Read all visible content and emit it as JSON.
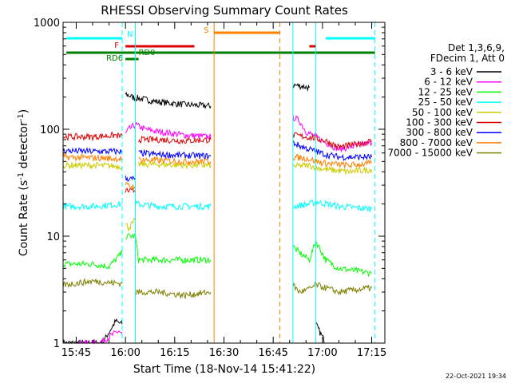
{
  "chart_data": {
    "type": "line",
    "title": "RHESSI Observing Summary Count Rates",
    "xlabel": "Start Time (18-Nov-14 15:41:22)",
    "ylabel": "Count Rate (s",
    "ylabel_sup1": "-1",
    "ylabel_mid": " detector",
    "ylabel_sup2": "-1",
    "ylabel_end": ")",
    "y_scale": "log",
    "ylim": [
      1,
      1000
    ],
    "xlim": [
      "15:41",
      "17:19"
    ],
    "x_ticks": [
      "15:45",
      "16:00",
      "16:15",
      "16:30",
      "16:45",
      "17:00",
      "17:15"
    ],
    "y_ticks": [
      "1",
      "10",
      "100",
      "1000"
    ],
    "date_stamp": "22-Oct-2021 19:34",
    "legend": {
      "position": "right",
      "header_line1": "Det 1,3,6,9,",
      "header_line2": "FDecim 1, Att 0",
      "entries": [
        {
          "label": "3 - 6 keV",
          "color": "#000000"
        },
        {
          "label": "6 - 12 keV",
          "color": "#ff00ff"
        },
        {
          "label": "12 - 25 keV",
          "color": "#00ff00"
        },
        {
          "label": "25 - 50 keV",
          "color": "#00ffff"
        },
        {
          "label": "50 - 100 keV",
          "color": "#cccc00"
        },
        {
          "label": "100 - 300 keV",
          "color": "#dd0000"
        },
        {
          "label": "300 - 800 keV",
          "color": "#0000ff"
        },
        {
          "label": "800 - 7000 keV",
          "color": "#ff8000"
        },
        {
          "label": "7000 - 15000 keV",
          "color": "#808000"
        }
      ]
    },
    "flag_bars": [
      {
        "label": "N",
        "color": "#00ffff",
        "segments": [
          [
            "15:42",
            "15:59"
          ],
          [
            "17:01",
            "17:16"
          ]
        ]
      },
      {
        "label": "S",
        "color": "#ff8000",
        "segments": [
          [
            "16:27",
            "16:47"
          ]
        ]
      },
      {
        "label": "F",
        "color": "#dd0000",
        "segments": [
          [
            "16:00",
            "16:21"
          ],
          [
            "16:56",
            "16:58"
          ]
        ]
      },
      {
        "label": "RD0",
        "color": "#008000",
        "segments": [
          [
            "15:42",
            "17:16"
          ]
        ]
      },
      {
        "label": "RD6",
        "color": "#008000",
        "segments": [
          [
            "16:00",
            "16:04"
          ]
        ]
      }
    ],
    "vertical_markers": [
      {
        "time": "15:59",
        "color": "#00ffff",
        "style": "dashed"
      },
      {
        "time": "16:03",
        "color": "#00ffff",
        "style": "solid"
      },
      {
        "time": "16:27",
        "color": "#ff8000",
        "style": "solid"
      },
      {
        "time": "16:47",
        "color": "#ff8000",
        "style": "dashed"
      },
      {
        "time": "16:51",
        "color": "#00ffff",
        "style": "solid"
      },
      {
        "time": "16:58",
        "color": "#00ffff",
        "style": "solid"
      },
      {
        "time": "17:16",
        "color": "#00ffff",
        "style": "dashed"
      }
    ],
    "series": [
      {
        "name": "3 - 6 keV",
        "color": "#000000",
        "segments": [
          {
            "x": [
              "15:41",
              "15:53",
              "15:57",
              "15:59"
            ],
            "y": [
              1,
              1,
              1.6,
              1.5
            ]
          },
          {
            "x": [
              "16:00",
              "16:02",
              "16:10",
              "16:18",
              "16:26"
            ],
            "y": [
              215,
              200,
              180,
              170,
              165
            ]
          },
          {
            "x": [
              "16:51",
              "16:53",
              "16:56"
            ],
            "y": [
              260,
              255,
              245
            ]
          },
          {
            "x": [
              "16:58",
              "16:59",
              "17:01"
            ],
            "y": [
              1.5,
              1.3,
              1
            ]
          }
        ]
      },
      {
        "name": "6 - 12 keV",
        "color": "#ff00ff",
        "segments": [
          {
            "x": [
              "15:45",
              "15:52",
              "15:58",
              "15:59"
            ],
            "y": [
              1,
              1,
              1.3,
              1.2
            ]
          },
          {
            "x": [
              "16:00",
              "16:01",
              "16:03",
              "16:06",
              "16:10",
              "16:18",
              "16:26"
            ],
            "y": [
              90,
              100,
              110,
              100,
              95,
              88,
              85
            ]
          },
          {
            "x": [
              "16:51",
              "16:53",
              "16:55",
              "16:58",
              "17:01",
              "17:05",
              "17:15"
            ],
            "y": [
              130,
              120,
              95,
              85,
              75,
              65,
              75
            ]
          }
        ]
      },
      {
        "name": "12 - 25 keV",
        "color": "#00ff00",
        "segments": [
          {
            "x": [
              "15:41",
              "15:50",
              "15:55",
              "15:59"
            ],
            "y": [
              5.5,
              5.5,
              5.2,
              7
            ]
          },
          {
            "x": [
              "16:00",
              "16:03",
              "16:04",
              "16:15",
              "16:26"
            ],
            "y": [
              10,
              10,
              6,
              6,
              6
            ]
          },
          {
            "x": [
              "16:51",
              "16:53",
              "16:56",
              "16:58",
              "17:01",
              "17:05",
              "17:15"
            ],
            "y": [
              8,
              7,
              6,
              9,
              6,
              5,
              4.5
            ]
          }
        ]
      },
      {
        "name": "25 - 50 keV",
        "color": "#00ffff",
        "segments": [
          {
            "x": [
              "15:41",
              "15:50",
              "15:59"
            ],
            "y": [
              19,
              19,
              20
            ]
          },
          {
            "x": [
              "16:03",
              "16:10",
              "16:18",
              "16:26"
            ],
            "y": [
              20,
              19,
              19,
              19
            ]
          },
          {
            "x": [
              "16:51",
              "16:56",
              "16:58",
              "17:05",
              "17:15"
            ],
            "y": [
              19,
              20,
              21,
              19,
              18
            ]
          }
        ]
      },
      {
        "name": "50 - 100 keV",
        "color": "#cccc00",
        "segments": [
          {
            "x": [
              "15:41",
              "15:50",
              "15:59"
            ],
            "y": [
              46,
              46,
              45
            ]
          },
          {
            "x": [
              "16:00",
              "16:01",
              "16:02",
              "16:03"
            ],
            "y": [
              13,
              12,
              13,
              14
            ]
          },
          {
            "x": [
              "16:04",
              "16:10",
              "16:18",
              "16:26"
            ],
            "y": [
              47,
              47,
              46,
              46
            ]
          },
          {
            "x": [
              "16:51",
              "16:56",
              "16:58",
              "17:01",
              "17:08",
              "17:15"
            ],
            "y": [
              45,
              46,
              44,
              42,
              40,
              42
            ]
          }
        ]
      },
      {
        "name": "100 - 300 keV",
        "color": "#dd0000",
        "segments": [
          {
            "x": [
              "15:41",
              "15:50",
              "15:57",
              "15:59"
            ],
            "y": [
              85,
              85,
              88,
              85
            ]
          },
          {
            "x": [
              "16:00",
              "16:02",
              "16:03"
            ],
            "y": [
              27,
              26,
              27
            ]
          },
          {
            "x": [
              "16:04",
              "16:10",
              "16:18",
              "16:26"
            ],
            "y": [
              80,
              80,
              78,
              80
            ]
          },
          {
            "x": [
              "16:51",
              "16:55",
              "16:58",
              "17:01",
              "17:05",
              "17:10",
              "17:15"
            ],
            "y": [
              88,
              85,
              82,
              78,
              68,
              72,
              78
            ]
          }
        ]
      },
      {
        "name": "300 - 800 keV",
        "color": "#0000ff",
        "segments": [
          {
            "x": [
              "15:41",
              "15:50",
              "15:59"
            ],
            "y": [
              63,
              62,
              62
            ]
          },
          {
            "x": [
              "16:00",
              "16:02",
              "16:03"
            ],
            "y": [
              35,
              34,
              35
            ]
          },
          {
            "x": [
              "16:04",
              "16:10",
              "16:18",
              "16:26"
            ],
            "y": [
              60,
              58,
              57,
              56
            ]
          },
          {
            "x": [
              "16:51",
              "16:53",
              "16:56",
              "16:58",
              "17:01",
              "17:05",
              "17:15"
            ],
            "y": [
              75,
              70,
              65,
              62,
              58,
              55,
              55
            ]
          }
        ]
      },
      {
        "name": "800 - 7000 keV",
        "color": "#ff8000",
        "segments": [
          {
            "x": [
              "15:41",
              "15:50",
              "15:59"
            ],
            "y": [
              55,
              54,
              53
            ]
          },
          {
            "x": [
              "16:00",
              "16:02",
              "16:03"
            ],
            "y": [
              30,
              29,
              30
            ]
          },
          {
            "x": [
              "16:04",
              "16:10",
              "16:18",
              "16:26"
            ],
            "y": [
              52,
              51,
              50,
              50
            ]
          },
          {
            "x": [
              "16:51",
              "16:56",
              "16:58",
              "17:01",
              "17:08",
              "17:15"
            ],
            "y": [
              55,
              53,
              50,
              48,
              46,
              48
            ]
          }
        ]
      },
      {
        "name": "7000 - 15000 keV",
        "color": "#808000",
        "segments": [
          {
            "x": [
              "15:41",
              "15:50",
              "15:59"
            ],
            "y": [
              3.5,
              3.8,
              3.6
            ]
          },
          {
            "x": [
              "16:03",
              "16:10",
              "16:18",
              "16:26"
            ],
            "y": [
              3,
              3,
              2.8,
              3
            ]
          },
          {
            "x": [
              "16:51",
              "16:53",
              "16:56",
              "16:58",
              "17:05",
              "17:15"
            ],
            "y": [
              3.5,
              3,
              3.2,
              3.5,
              3,
              3.3
            ]
          }
        ]
      }
    ]
  }
}
